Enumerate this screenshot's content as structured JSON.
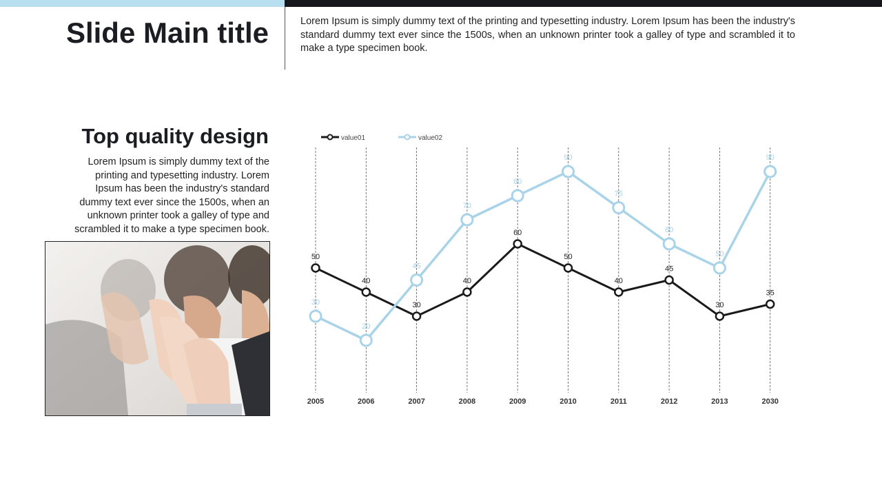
{
  "header": {
    "title": "Slide Main title",
    "intro": "Lorem Ipsum is simply dummy text of the printing and typesetting industry. Lorem Ipsum has been the industry's standard dummy text ever since the 1500s, when an unknown printer took a galley of type and scrambled it to make a type specimen book."
  },
  "section": {
    "title": "Top quality design",
    "body": "Lorem Ipsum is simply dummy text of the printing and typesetting industry. Lorem Ipsum has been the industry's standard dummy text ever since the 1500s, when an unknown printer took a galley of type and scrambled it to make a type specimen book."
  },
  "colors": {
    "accent_light": "#b7dff0",
    "accent_dark": "#15171c",
    "series1": "#1a1a1a",
    "series2": "#a9d3e8"
  },
  "chart_data": {
    "type": "line",
    "categories": [
      "2005",
      "2006",
      "2007",
      "2008",
      "2009",
      "2010",
      "2011",
      "2012",
      "2013",
      "2030"
    ],
    "series": [
      {
        "name": "value01",
        "values": [
          50,
          40,
          30,
          40,
          60,
          50,
          40,
          45,
          30,
          35
        ]
      },
      {
        "name": "value02",
        "values": [
          30,
          20,
          45,
          70,
          80,
          90,
          75,
          60,
          50,
          90
        ]
      }
    ],
    "title": "",
    "xlabel": "",
    "ylabel": "",
    "ylim": [
      0,
      100
    ],
    "legend": "top-left",
    "grid": "vertical dashed lines",
    "data_labels": true
  }
}
